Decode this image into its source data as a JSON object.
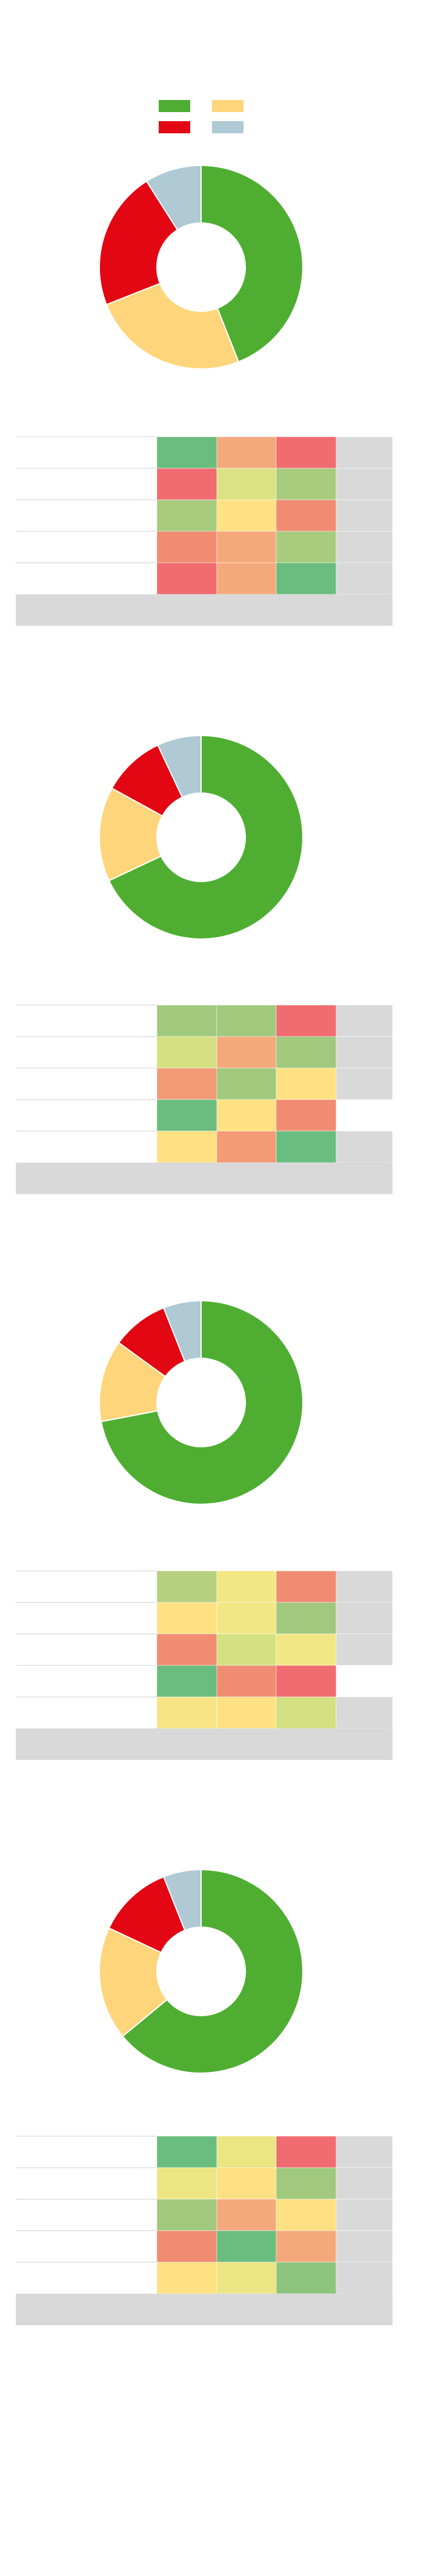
{
  "legend": {
    "colors": [
      "#4fae32",
      "#fed57a",
      "#e30613",
      "#afc9d5"
    ]
  },
  "charts": [
    {
      "donut": {
        "values": [
          44,
          25,
          22,
          9
        ],
        "colors": [
          "#4fae32",
          "#fed57a",
          "#e30613",
          "#afc9d5"
        ]
      },
      "table": {
        "rows": [
          [
            "#6abd7e",
            "#f4a97c",
            "#f06c70",
            "#d9d9d9"
          ],
          [
            "#f06c70",
            "#dbe283",
            "#a8cc7e",
            "#d9d9d9"
          ],
          [
            "#a8cc7e",
            "#fee182",
            "#f08c72",
            "#d9d9d9"
          ],
          [
            "#f08c72",
            "#f4a97c",
            "#a8cc7e",
            "#d9d9d9"
          ],
          [
            "#f06c70",
            "#f4a97c",
            "#6abd7e",
            "#d9d9d9"
          ]
        ]
      }
    },
    {
      "donut": {
        "values": [
          68,
          15,
          10,
          7
        ],
        "colors": [
          "#4fae32",
          "#fed57a",
          "#e30613",
          "#afc9d5"
        ]
      },
      "table": {
        "rows": [
          [
            "#a0c97e",
            "#a0c97e",
            "#f06c70",
            "#d9d9d9"
          ],
          [
            "#d4e082",
            "#f4a97c",
            "#a0c97e",
            "#d9d9d9"
          ],
          [
            "#f29b76",
            "#a0c97e",
            "#fee182",
            "#d9d9d9"
          ],
          [
            "#6abd7e",
            "#fee182",
            "#f08c72",
            "#ffffff"
          ],
          [
            "#fee182",
            "#f29b76",
            "#6abd7e",
            "#d9d9d9"
          ]
        ]
      }
    },
    {
      "donut": {
        "values": [
          72,
          13,
          9,
          6
        ],
        "colors": [
          "#4fae32",
          "#fed57a",
          "#e30613",
          "#afc9d5"
        ]
      },
      "table": {
        "rows": [
          [
            "#b5d07f",
            "#f2e784",
            "#f08c72",
            "#d9d9d9"
          ],
          [
            "#fee182",
            "#f2e784",
            "#a0c97e",
            "#d9d9d9"
          ],
          [
            "#f08c72",
            "#d4e082",
            "#f2e784",
            "#d9d9d9"
          ],
          [
            "#6abd7e",
            "#f08c72",
            "#f06c70",
            "#ffffff"
          ],
          [
            "#f5e584",
            "#fee182",
            "#d4e082",
            "#d9d9d9"
          ]
        ]
      }
    },
    {
      "donut": {
        "values": [
          64,
          18,
          12,
          6
        ],
        "colors": [
          "#4fae32",
          "#fed57a",
          "#e30613",
          "#afc9d5"
        ]
      },
      "table": {
        "rows": [
          [
            "#6abd7e",
            "#ece583",
            "#f06c70",
            "#d9d9d9"
          ],
          [
            "#ece583",
            "#fee182",
            "#a0c97e",
            "#d9d9d9"
          ],
          [
            "#a0c97e",
            "#f4a97c",
            "#fee182",
            "#d9d9d9"
          ],
          [
            "#f08c72",
            "#6abd7e",
            "#f4a97c",
            "#d9d9d9"
          ],
          [
            "#fee182",
            "#ece583",
            "#8cc47d",
            "#d9d9d9"
          ]
        ]
      }
    }
  ]
}
